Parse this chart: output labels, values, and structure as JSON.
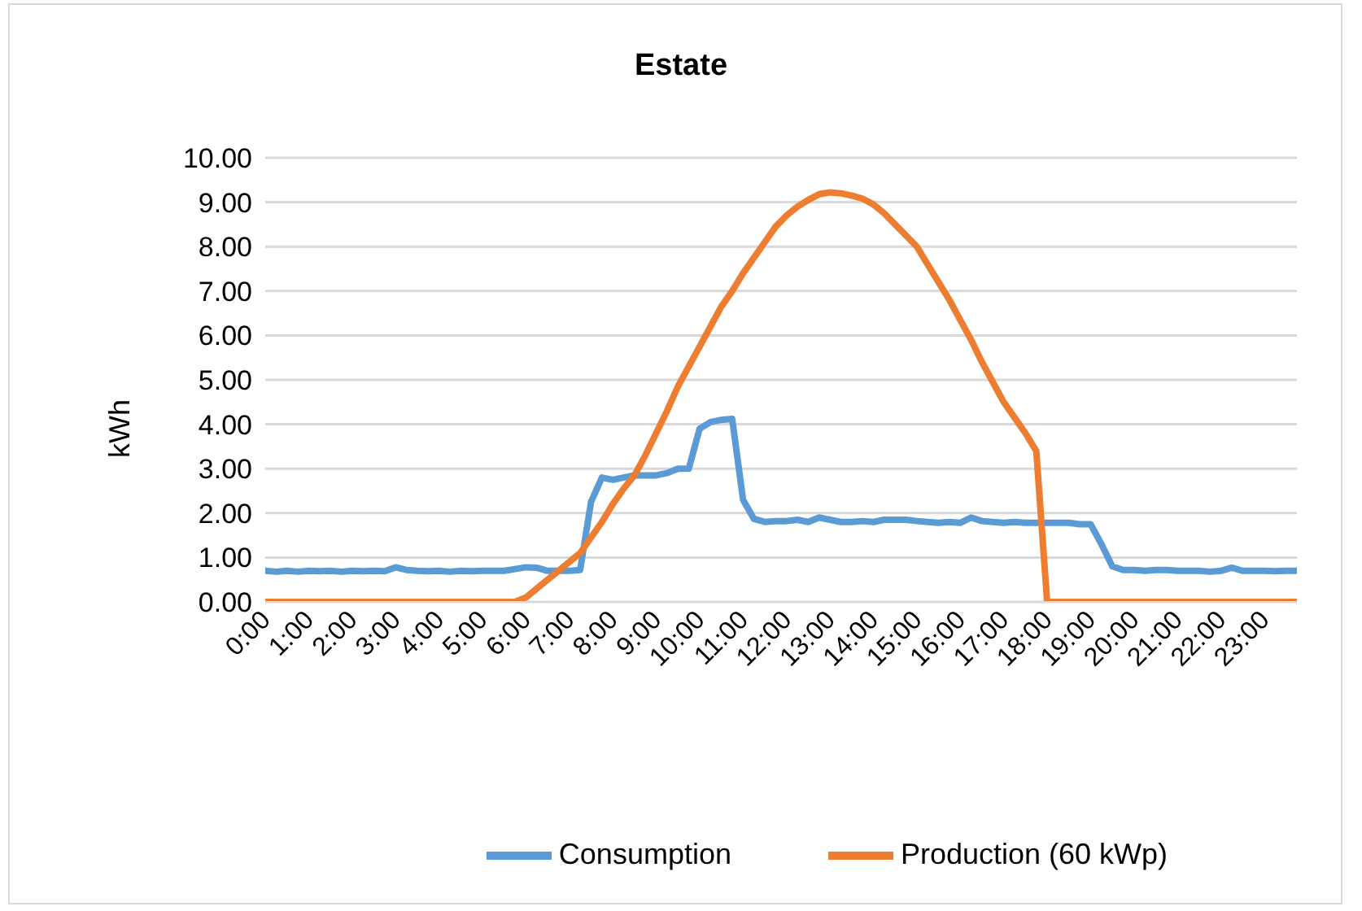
{
  "chart_data": {
    "type": "line",
    "title": "Estate",
    "ylabel": "kWh",
    "x": [
      0,
      0.25,
      0.5,
      0.75,
      1,
      1.25,
      1.5,
      1.75,
      2,
      2.25,
      2.5,
      2.75,
      3,
      3.25,
      3.5,
      3.75,
      4,
      4.25,
      4.5,
      4.75,
      5,
      5.25,
      5.5,
      5.75,
      6,
      6.25,
      6.5,
      6.75,
      7,
      7.25,
      7.5,
      7.75,
      8,
      8.25,
      8.5,
      8.75,
      9,
      9.25,
      9.5,
      9.75,
      10,
      10.25,
      10.5,
      10.75,
      11,
      11.25,
      11.5,
      11.75,
      12,
      12.25,
      12.5,
      12.75,
      13,
      13.25,
      13.5,
      13.75,
      14,
      14.25,
      14.5,
      14.75,
      15,
      15.25,
      15.5,
      15.75,
      16,
      16.25,
      16.5,
      16.75,
      17,
      17.25,
      17.5,
      17.75,
      18,
      18.25,
      18.5,
      18.75,
      19,
      19.25,
      19.5,
      19.75,
      20,
      20.25,
      20.5,
      20.75,
      21,
      21.25,
      21.5,
      21.75,
      22,
      22.25,
      22.5,
      22.75,
      23,
      23.25,
      23.5,
      23.75
    ],
    "series": [
      {
        "name": "Consumption",
        "color": "#5b9bd5",
        "values": [
          0.7,
          0.68,
          0.7,
          0.68,
          0.7,
          0.69,
          0.7,
          0.68,
          0.7,
          0.69,
          0.7,
          0.69,
          0.78,
          0.72,
          0.7,
          0.69,
          0.7,
          0.68,
          0.7,
          0.69,
          0.7,
          0.7,
          0.7,
          0.74,
          0.78,
          0.77,
          0.7,
          0.7,
          0.7,
          0.72,
          2.25,
          2.8,
          2.75,
          2.8,
          2.85,
          2.85,
          2.85,
          2.9,
          3.0,
          3.0,
          3.9,
          4.05,
          4.1,
          4.12,
          2.3,
          1.87,
          1.8,
          1.82,
          1.82,
          1.85,
          1.8,
          1.9,
          1.85,
          1.8,
          1.8,
          1.82,
          1.8,
          1.85,
          1.85,
          1.85,
          1.82,
          1.8,
          1.78,
          1.8,
          1.78,
          1.9,
          1.82,
          1.8,
          1.78,
          1.8,
          1.78,
          1.78,
          1.78,
          1.78,
          1.78,
          1.75,
          1.75,
          1.3,
          0.8,
          0.72,
          0.72,
          0.7,
          0.72,
          0.72,
          0.7,
          0.7,
          0.7,
          0.68,
          0.7,
          0.77,
          0.7,
          0.7,
          0.7,
          0.69,
          0.7,
          0.7
        ]
      },
      {
        "name": "Production (60 kWp)",
        "color": "#ed7d31",
        "values": [
          0,
          0,
          0,
          0,
          0,
          0,
          0,
          0,
          0,
          0,
          0,
          0,
          0,
          0,
          0,
          0,
          0,
          0,
          0,
          0,
          0,
          0,
          0,
          0,
          0.1,
          0.3,
          0.5,
          0.7,
          0.9,
          1.1,
          1.45,
          1.8,
          2.2,
          2.55,
          2.85,
          3.3,
          3.8,
          4.3,
          4.85,
          5.3,
          5.75,
          6.2,
          6.65,
          7.0,
          7.4,
          7.75,
          8.1,
          8.45,
          8.7,
          8.9,
          9.05,
          9.18,
          9.22,
          9.2,
          9.15,
          9.08,
          8.95,
          8.75,
          8.5,
          8.25,
          8.0,
          7.6,
          7.2,
          6.8,
          6.35,
          5.9,
          5.4,
          4.95,
          4.5,
          4.15,
          3.8,
          3.4,
          0,
          0,
          0,
          0,
          0,
          0,
          0,
          0,
          0,
          0,
          0,
          0,
          0,
          0,
          0,
          0,
          0,
          0,
          0,
          0,
          0,
          0,
          0,
          0
        ]
      }
    ],
    "xlim": [
      0,
      23.75
    ],
    "xticks": [
      {
        "value": 0,
        "label": "0:00"
      },
      {
        "value": 1,
        "label": "1:00"
      },
      {
        "value": 2,
        "label": "2:00"
      },
      {
        "value": 3,
        "label": "3:00"
      },
      {
        "value": 4,
        "label": "4:00"
      },
      {
        "value": 5,
        "label": "5:00"
      },
      {
        "value": 6,
        "label": "6:00"
      },
      {
        "value": 7,
        "label": "7:00"
      },
      {
        "value": 8,
        "label": "8:00"
      },
      {
        "value": 9,
        "label": "9:00"
      },
      {
        "value": 10,
        "label": "10:00"
      },
      {
        "value": 11,
        "label": "11:00"
      },
      {
        "value": 12,
        "label": "12:00"
      },
      {
        "value": 13,
        "label": "13:00"
      },
      {
        "value": 14,
        "label": "14:00"
      },
      {
        "value": 15,
        "label": "15:00"
      },
      {
        "value": 16,
        "label": "16:00"
      },
      {
        "value": 17,
        "label": "17:00"
      },
      {
        "value": 18,
        "label": "18:00"
      },
      {
        "value": 19,
        "label": "19:00"
      },
      {
        "value": 20,
        "label": "20:00"
      },
      {
        "value": 21,
        "label": "21:00"
      },
      {
        "value": 22,
        "label": "22:00"
      },
      {
        "value": 23,
        "label": "23:00"
      }
    ],
    "ylim": [
      0,
      10
    ],
    "yticks": [
      {
        "value": 0,
        "label": "0.00"
      },
      {
        "value": 1,
        "label": "1.00"
      },
      {
        "value": 2,
        "label": "2.00"
      },
      {
        "value": 3,
        "label": "3.00"
      },
      {
        "value": 4,
        "label": "4.00"
      },
      {
        "value": 5,
        "label": "5.00"
      },
      {
        "value": 6,
        "label": "6.00"
      },
      {
        "value": 7,
        "label": "7.00"
      },
      {
        "value": 8,
        "label": "8.00"
      },
      {
        "value": 9,
        "label": "9.00"
      },
      {
        "value": 10,
        "label": "10.00"
      }
    ],
    "grid": "y",
    "legend": "bottom",
    "marker": "none",
    "line_style": "solid"
  }
}
